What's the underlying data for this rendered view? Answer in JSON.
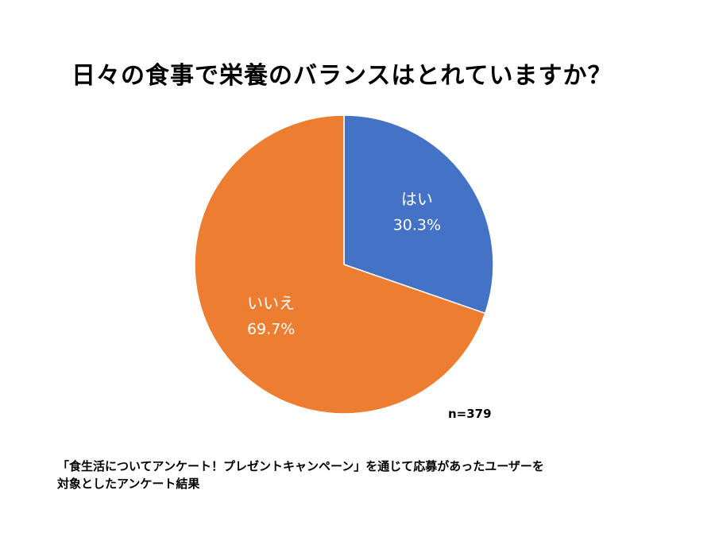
{
  "chart_data": {
    "type": "pie",
    "title": "日々の食事で栄養のバランスはとれていますか？",
    "categories": [
      "はい",
      "いいえ"
    ],
    "values": [
      30.3,
      69.7
    ],
    "value_labels": [
      "30.3%",
      "69.7%"
    ],
    "colors": [
      "#4472C4",
      "#ED7D31"
    ],
    "start": "12 o'clock",
    "direction": "clockwise",
    "legend": "none",
    "sample_size": "n=379"
  },
  "footnote": {
    "line1": "「食生活についてアンケート！プレゼントキャンペーン」を通じて応募があったユーザーを",
    "line2": "対象としたアンケート結果"
  }
}
